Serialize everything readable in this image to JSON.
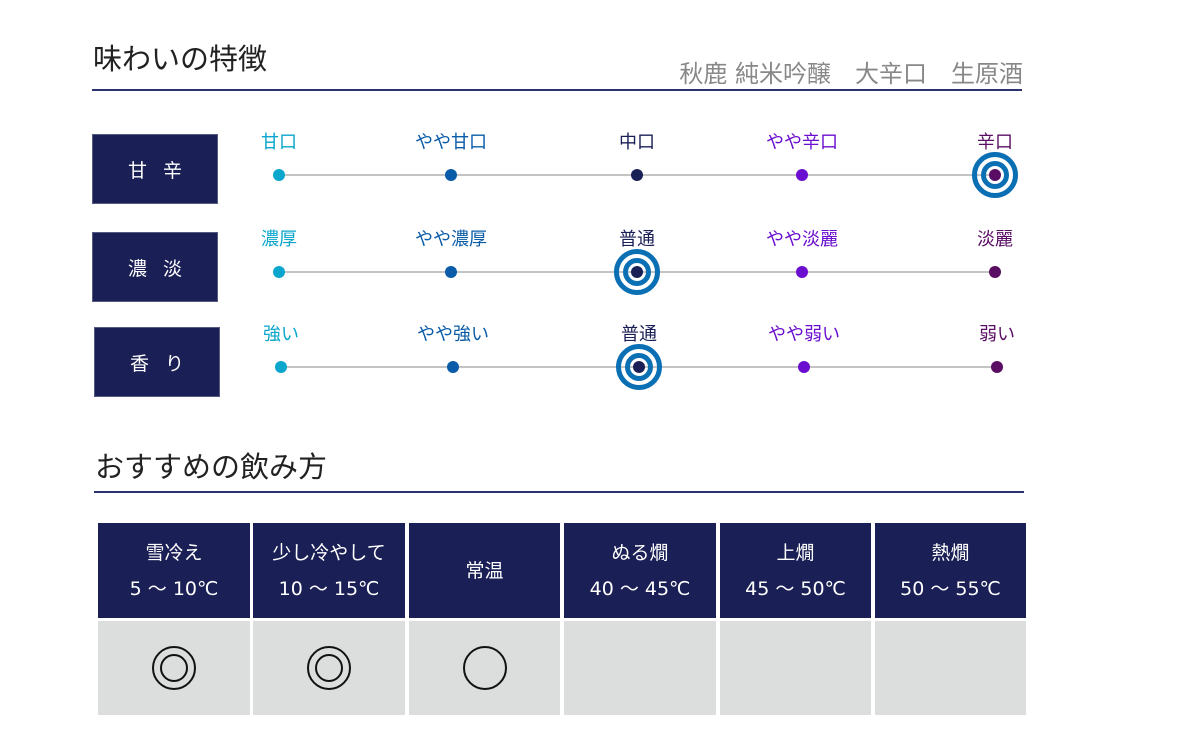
{
  "taste": {
    "title": "味わいの特徴",
    "product": "秋鹿 純米吟醸　大辛口　生原酒",
    "colors": [
      "#0aa6cc",
      "#0a5ca8",
      "#1a1f55",
      "#6a0fcf",
      "#5a0e63"
    ],
    "selected_ring_color": "#0b6fb4",
    "rows": [
      {
        "label": "甘辛",
        "scale": [
          "甘口",
          "やや甘口",
          "中口",
          "やや辛口",
          "辛口"
        ],
        "selected_index": 4
      },
      {
        "label": "濃淡",
        "scale": [
          "濃厚",
          "やや濃厚",
          "普通",
          "やや淡麗",
          "淡麗"
        ],
        "selected_index": 2
      },
      {
        "label": "香り",
        "scale": [
          "強い",
          "やや強い",
          "普通",
          "やや弱い",
          "弱い"
        ],
        "selected_index": 2
      }
    ]
  },
  "serving": {
    "title": "おすすめの飲み方",
    "columns": [
      {
        "name": "雪冷え",
        "temp": "5 ～ 10℃",
        "mark": "double-circle"
      },
      {
        "name": "少し冷やして",
        "temp": "10 ～ 15℃",
        "mark": "double-circle"
      },
      {
        "name": "常温",
        "temp": "",
        "mark": "circle"
      },
      {
        "name": "ぬる燗",
        "temp": "40 ～ 45℃",
        "mark": ""
      },
      {
        "name": "上燗",
        "temp": "45 ～ 50℃",
        "mark": ""
      },
      {
        "name": "熱燗",
        "temp": "50 ～ 55℃",
        "mark": ""
      }
    ]
  }
}
